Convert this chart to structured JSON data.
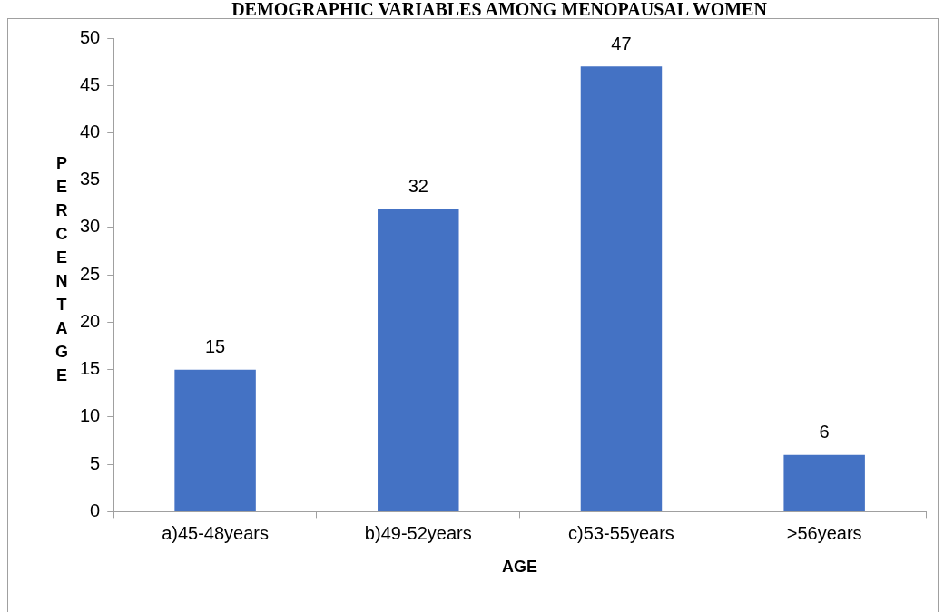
{
  "chart_data": {
    "type": "bar",
    "title": "DEMOGRAPHIC VARIABLES AMONG MENOPAUSAL WOMEN",
    "xlabel": "AGE",
    "ylabel": "PERCENTAGE",
    "categories": [
      "a)45-48years",
      "b)49-52years",
      "c)53-55years",
      ">56years"
    ],
    "values": [
      15,
      32,
      47,
      6
    ],
    "color": "#4472c4",
    "data_labels": true,
    "ylim": [
      0,
      50
    ],
    "yticks": [
      0,
      5,
      10,
      15,
      20,
      25,
      30,
      35,
      40,
      45,
      50
    ],
    "grid": false,
    "legend": false
  }
}
